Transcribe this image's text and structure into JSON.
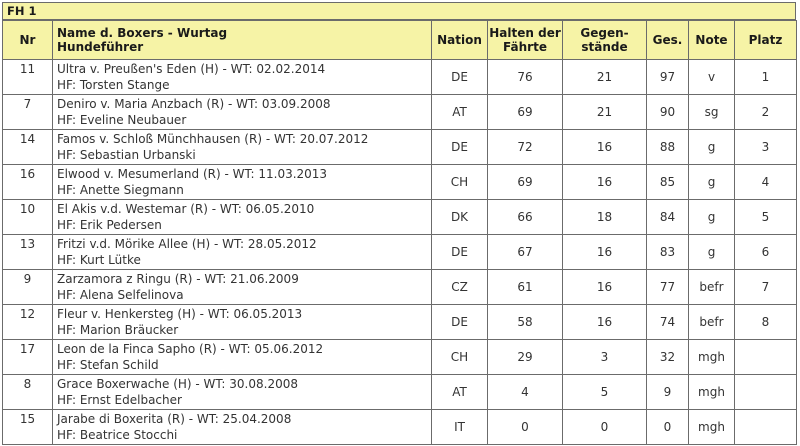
{
  "caption": "FH 1",
  "headers": {
    "nr": "Nr",
    "name_line1": "Name d. Boxers - Wurtag",
    "name_line2": "Hundeführer",
    "nation": "Nation",
    "halten_line1": "Halten der",
    "halten_line2": "Fährte",
    "gegen_line1": "Gegen-",
    "gegen_line2": "stände",
    "ges": "Ges.",
    "note": "Note",
    "platz": "Platz"
  },
  "rows": [
    {
      "nr": "11",
      "dog": "Ultra v. Preußen's Eden (H) - WT: 02.02.2014",
      "handler": "HF: Torsten Stange",
      "nation": "DE",
      "halten": "76",
      "gegen": "21",
      "ges": "97",
      "note": "v",
      "platz": "1"
    },
    {
      "nr": "7",
      "dog": "Deniro v. Maria Anzbach (R) - WT: 03.09.2008",
      "handler": "HF: Eveline Neubauer",
      "nation": "AT",
      "halten": "69",
      "gegen": "21",
      "ges": "90",
      "note": "sg",
      "platz": "2"
    },
    {
      "nr": "14",
      "dog": "Famos v. Schloß Münchhausen (R) - WT: 20.07.2012",
      "handler": "HF: Sebastian Urbanski",
      "nation": "DE",
      "halten": "72",
      "gegen": "16",
      "ges": "88",
      "note": "g",
      "platz": "3"
    },
    {
      "nr": "16",
      "dog": "Elwood v. Mesumerland (R) - WT: 11.03.2013",
      "handler": "HF: Anette Siegmann",
      "nation": "CH",
      "halten": "69",
      "gegen": "16",
      "ges": "85",
      "note": "g",
      "platz": "4"
    },
    {
      "nr": "10",
      "dog": "El Akis v.d. Westemar (R) - WT: 06.05.2010",
      "handler": "HF: Erik Pedersen",
      "nation": "DK",
      "halten": "66",
      "gegen": "18",
      "ges": "84",
      "note": "g",
      "platz": "5"
    },
    {
      "nr": "13",
      "dog": "Fritzi v.d. Mörike Allee (H) - WT: 28.05.2012",
      "handler": "HF: Kurt Lütke",
      "nation": "DE",
      "halten": "67",
      "gegen": "16",
      "ges": "83",
      "note": "g",
      "platz": "6"
    },
    {
      "nr": "9",
      "dog": "Zarzamora z Ringu (R) - WT: 21.06.2009",
      "handler": "HF: Alena Selfelinova",
      "nation": "CZ",
      "halten": "61",
      "gegen": "16",
      "ges": "77",
      "note": "befr",
      "platz": "7"
    },
    {
      "nr": "12",
      "dog": "Fleur v. Henkersteg (H) - WT: 06.05.2013",
      "handler": "HF: Marion Bräucker",
      "nation": "DE",
      "halten": "58",
      "gegen": "16",
      "ges": "74",
      "note": "befr",
      "platz": "8"
    },
    {
      "nr": "17",
      "dog": "Leon de la Finca Sapho (R) - WT: 05.06.2012",
      "handler": "HF: Stefan Schild",
      "nation": "CH",
      "halten": "29",
      "gegen": "3",
      "ges": "32",
      "note": "mgh",
      "platz": ""
    },
    {
      "nr": "8",
      "dog": "Grace Boxerwache (H) - WT: 30.08.2008",
      "handler": "HF: Ernst Edelbacher",
      "nation": "AT",
      "halten": "4",
      "gegen": "5",
      "ges": "9",
      "note": "mgh",
      "platz": ""
    },
    {
      "nr": "15",
      "dog": "Jarabe di Boxerita (R) - WT: 25.04.2008",
      "handler": "HF: Beatrice Stocchi",
      "nation": "IT",
      "halten": "0",
      "gegen": "0",
      "ges": "0",
      "note": "mgh",
      "platz": ""
    }
  ]
}
